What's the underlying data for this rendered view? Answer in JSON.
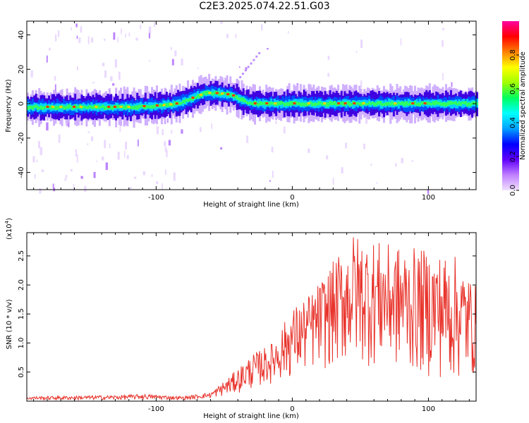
{
  "title": "C2E3.2025.074.22.51.G03",
  "chart_data": [
    {
      "type": "heatmap",
      "xlabel": "Height of straight line (km)",
      "ylabel": "Frequency (Hz)",
      "xlim": [
        -195,
        135
      ],
      "ylim": [
        -50,
        48
      ],
      "xticks": [
        -100,
        0,
        100
      ],
      "xtick_labels": [
        "-100",
        "0",
        "100"
      ],
      "yticks": [
        -40,
        -20,
        0,
        20,
        40
      ],
      "ytick_labels": [
        "-40",
        "-20",
        "0",
        "20",
        "40"
      ],
      "colorbar": {
        "label": "Normalized spectral amplitude",
        "range": [
          0,
          1
        ],
        "ticks": [
          0.0,
          0.2,
          0.4,
          0.6,
          0.8
        ],
        "tick_labels": [
          "0.0",
          "0.2",
          "0.4",
          "0.6",
          "0.8"
        ],
        "colors": [
          "#f0e0ff",
          "#c080ff",
          "#6000ff",
          "#0000ff",
          "#00a0ff",
          "#00ffff",
          "#00ff60",
          "#a0ff00",
          "#ffff00",
          "#ff8000",
          "#ff0000",
          "#ff00a0"
        ]
      },
      "ridge_points": [
        {
          "x": -195,
          "y": -2
        },
        {
          "x": -150,
          "y": -2
        },
        {
          "x": -120,
          "y": -2
        },
        {
          "x": -95,
          "y": -1
        },
        {
          "x": -85,
          "y": 0
        },
        {
          "x": -75,
          "y": 3
        },
        {
          "x": -65,
          "y": 6
        },
        {
          "x": -55,
          "y": 6
        },
        {
          "x": -45,
          "y": 5
        },
        {
          "x": -38,
          "y": 2
        },
        {
          "x": -30,
          "y": 0
        },
        {
          "x": -10,
          "y": 0
        },
        {
          "x": 10,
          "y": 0
        },
        {
          "x": 50,
          "y": 0
        },
        {
          "x": 100,
          "y": 0
        },
        {
          "x": 135,
          "y": 0
        }
      ],
      "grid": false
    },
    {
      "type": "line",
      "xlabel": "Height of straight line (km)",
      "ylabel": "SNR (10 * v/v)",
      "multiplier_label": "(x10",
      "multiplier_exp": "4",
      "xlim": [
        -195,
        135
      ],
      "ylim": [
        0,
        2.9
      ],
      "xticks": [
        -100,
        0,
        100
      ],
      "xtick_labels": [
        "-100",
        "0",
        "100"
      ],
      "yticks": [
        0.5,
        1.0,
        1.5,
        2.0,
        2.5
      ],
      "ytick_labels": [
        "0.5",
        "1.0",
        "1.5",
        "2.0",
        "2.5"
      ],
      "series": [
        {
          "color": "#e8322a",
          "envelope": [
            {
              "x": -195,
              "lo": 0.02,
              "hi": 0.08
            },
            {
              "x": -130,
              "lo": 0.02,
              "hi": 0.1
            },
            {
              "x": -110,
              "lo": 0.03,
              "hi": 0.12
            },
            {
              "x": -80,
              "lo": 0.02,
              "hi": 0.08
            },
            {
              "x": -60,
              "lo": 0.05,
              "hi": 0.15
            },
            {
              "x": -45,
              "lo": 0.1,
              "hi": 0.45
            },
            {
              "x": -30,
              "lo": 0.2,
              "hi": 0.8
            },
            {
              "x": -15,
              "lo": 0.3,
              "hi": 1.0
            },
            {
              "x": 0,
              "lo": 0.4,
              "hi": 1.6
            },
            {
              "x": 15,
              "lo": 0.5,
              "hi": 1.9
            },
            {
              "x": 30,
              "lo": 0.55,
              "hi": 2.4
            },
            {
              "x": 45,
              "lo": 0.6,
              "hi": 2.9
            },
            {
              "x": 70,
              "lo": 0.55,
              "hi": 2.7
            },
            {
              "x": 100,
              "lo": 0.4,
              "hi": 2.6
            },
            {
              "x": 120,
              "lo": 0.3,
              "hi": 2.5
            },
            {
              "x": 135,
              "lo": 0.4,
              "hi": 2.0
            }
          ]
        }
      ],
      "grid": false
    }
  ]
}
